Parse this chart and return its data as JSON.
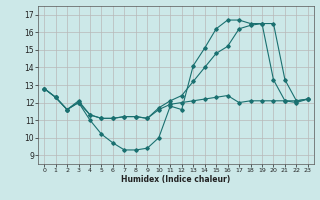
{
  "xlabel": "Humidex (Indice chaleur)",
  "background_color": "#cce8e8",
  "grid_color": "#b8b8b8",
  "line_color": "#1a7070",
  "xlim": [
    -0.5,
    23.5
  ],
  "ylim": [
    8.5,
    17.5
  ],
  "xticks": [
    0,
    1,
    2,
    3,
    4,
    5,
    6,
    7,
    8,
    9,
    10,
    11,
    12,
    13,
    14,
    15,
    16,
    17,
    18,
    19,
    20,
    21,
    22,
    23
  ],
  "yticks": [
    9,
    10,
    11,
    12,
    13,
    14,
    15,
    16,
    17
  ],
  "line1_x": [
    0,
    1,
    2,
    3,
    4,
    5,
    6,
    7,
    8,
    9,
    10,
    11,
    12,
    13,
    14,
    15,
    16,
    17,
    18,
    19,
    20,
    21,
    22,
    23
  ],
  "line1_y": [
    12.8,
    12.3,
    11.6,
    12.0,
    11.0,
    10.2,
    9.7,
    9.3,
    9.3,
    9.4,
    10.0,
    11.8,
    11.6,
    14.1,
    15.1,
    16.2,
    16.7,
    16.7,
    16.5,
    16.5,
    13.3,
    12.1,
    12.0,
    12.2
  ],
  "line2_x": [
    0,
    1,
    2,
    3,
    4,
    5,
    6,
    7,
    8,
    9,
    10,
    11,
    12,
    13,
    14,
    15,
    16,
    17,
    18,
    19,
    20,
    21,
    22,
    23
  ],
  "line2_y": [
    12.8,
    12.3,
    11.6,
    12.0,
    11.3,
    11.1,
    11.1,
    11.2,
    11.2,
    11.1,
    11.7,
    12.1,
    12.4,
    13.2,
    14.0,
    14.8,
    15.2,
    16.2,
    16.4,
    16.5,
    16.5,
    13.3,
    12.1,
    12.2
  ],
  "line3_x": [
    0,
    1,
    2,
    3,
    4,
    5,
    6,
    7,
    8,
    9,
    10,
    11,
    12,
    13,
    14,
    15,
    16,
    17,
    18,
    19,
    20,
    21,
    22,
    23
  ],
  "line3_y": [
    12.8,
    12.3,
    11.6,
    12.1,
    11.3,
    11.1,
    11.1,
    11.2,
    11.2,
    11.1,
    11.6,
    11.9,
    12.0,
    12.1,
    12.2,
    12.3,
    12.4,
    12.0,
    12.1,
    12.1,
    12.1,
    12.1,
    12.1,
    12.2
  ]
}
